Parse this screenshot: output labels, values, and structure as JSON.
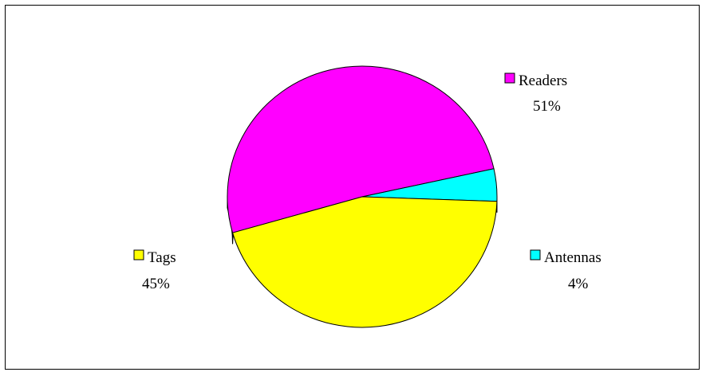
{
  "chart_data": {
    "type": "pie",
    "style": "3d",
    "categories": [
      "Readers",
      "Antennas",
      "Tags"
    ],
    "values": [
      51,
      4,
      45
    ],
    "percent_labels": [
      "51%",
      "4%",
      "45%"
    ],
    "colors": [
      "#FF00FF",
      "#00FFFF",
      "#FFFF00"
    ],
    "side_colors": [
      "#800080",
      "#008080",
      "#808000"
    ],
    "legend": "labels beside slices"
  }
}
